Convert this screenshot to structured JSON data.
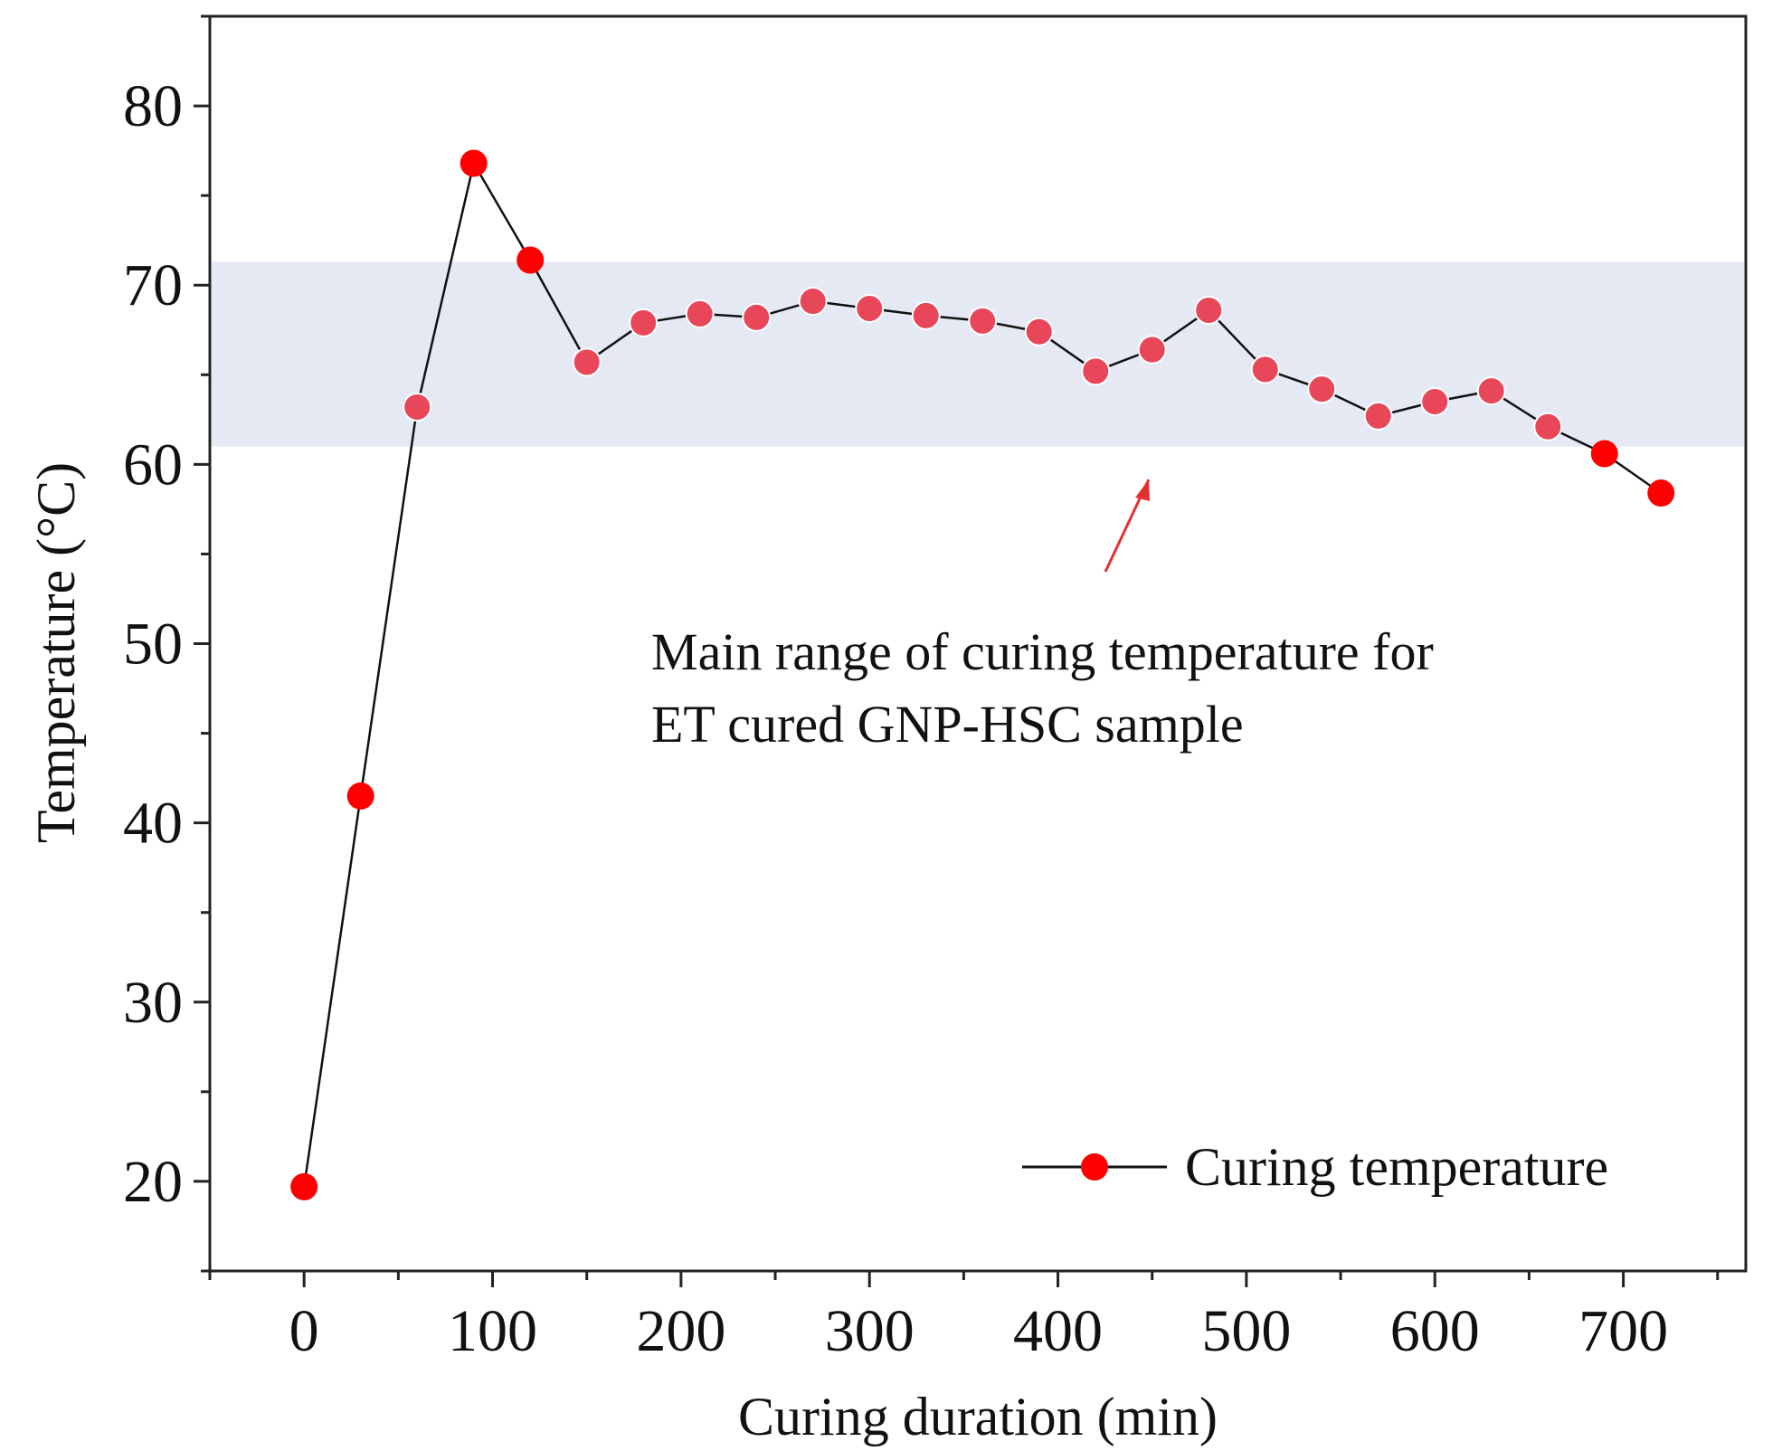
{
  "chart_data": {
    "type": "line",
    "xlabel": "Curing duration (min)",
    "ylabel": "Temperature (°C)",
    "xlim": [
      -50,
      765
    ],
    "ylim": [
      15,
      85
    ],
    "x_ticks": [
      0,
      100,
      200,
      300,
      400,
      500,
      600,
      700
    ],
    "y_ticks": [
      20,
      30,
      40,
      50,
      60,
      70,
      80
    ],
    "grid": false,
    "legend_position": "bottom-right",
    "series": [
      {
        "name": "Curing temperature",
        "color": "#ff0000",
        "line_color": "#111111",
        "x": [
          0,
          30,
          60,
          90,
          120,
          150,
          180,
          210,
          240,
          270,
          300,
          330,
          360,
          390,
          420,
          450,
          480,
          510,
          540,
          570,
          600,
          630,
          660,
          690,
          720
        ],
        "y": [
          19.7,
          41.5,
          63.2,
          76.8,
          71.4,
          65.7,
          67.9,
          68.4,
          68.2,
          69.1,
          68.7,
          68.3,
          68.0,
          67.4,
          65.2,
          66.4,
          68.6,
          65.3,
          64.2,
          62.7,
          63.5,
          64.1,
          62.1,
          60.6,
          58.4
        ]
      }
    ],
    "highlight_band": {
      "y_range": [
        61,
        71.3
      ],
      "color": "#e4e9f4"
    },
    "annotation": {
      "lines": [
        "Main range of curing temperature for",
        "ET cured GNP-HSC sample"
      ],
      "arrow_color": "#e53030"
    }
  }
}
